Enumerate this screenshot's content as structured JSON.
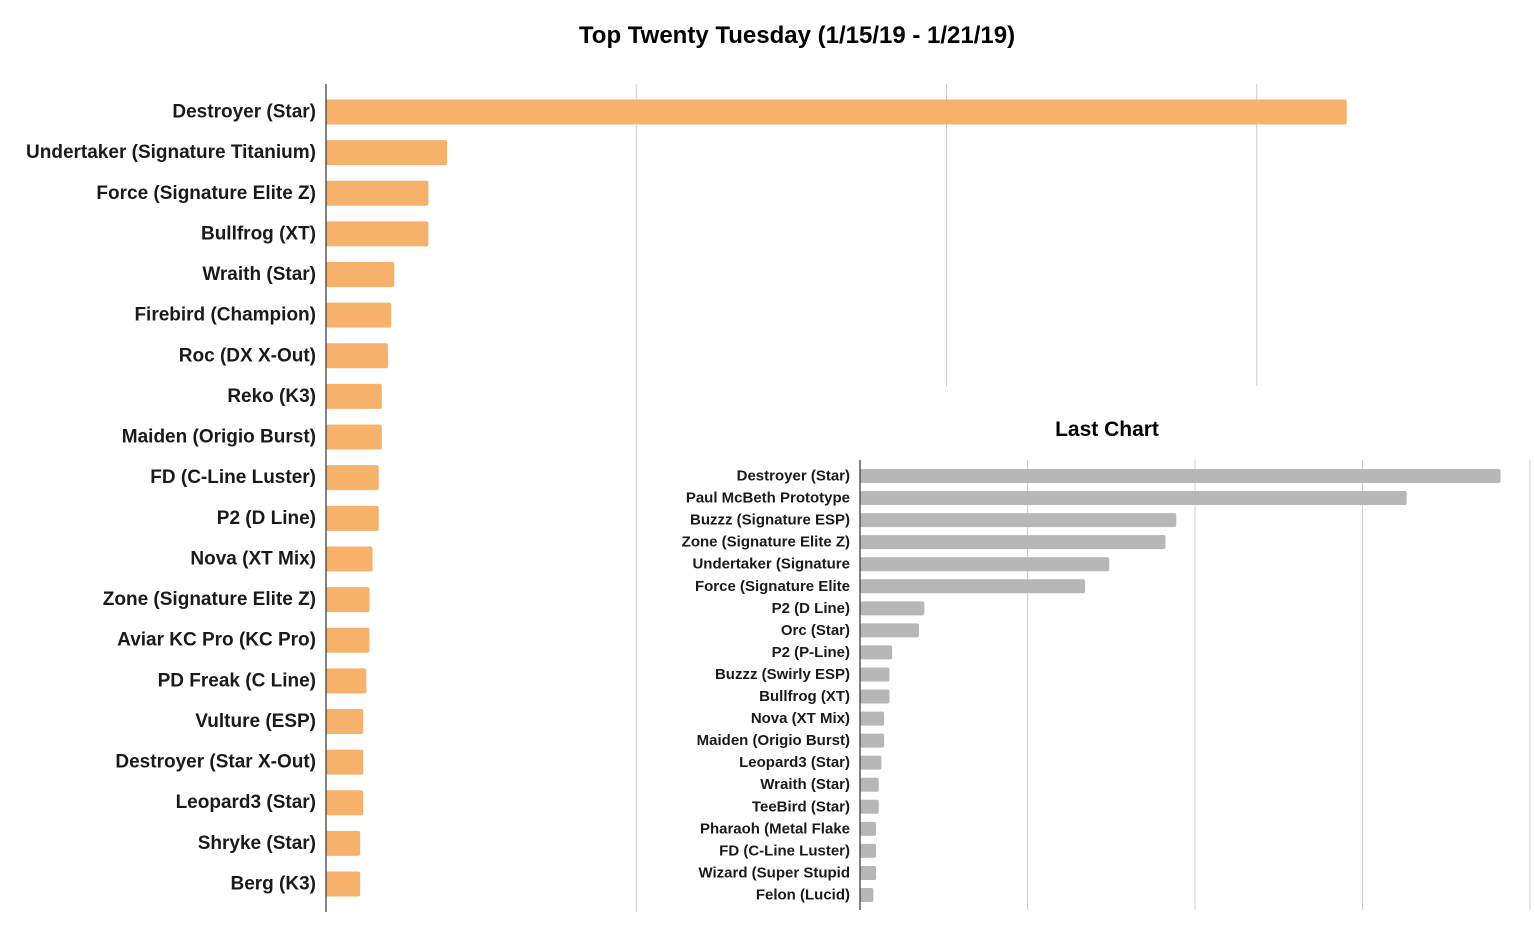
{
  "chart_data": [
    {
      "type": "bar",
      "orientation": "horizontal",
      "title": "Top Twenty Tuesday (1/15/19 - 1/21/19)",
      "xlabel": "",
      "ylabel": "",
      "grid": true,
      "color": "#f6b26b",
      "categories": [
        "Destroyer (Star)",
        "Undertaker (Signature Titanium)",
        "Force (Signature Elite Z)",
        "Bullfrog (XT)",
        "Wraith (Star)",
        "Firebird (Champion)",
        "Roc (DX X-Out)",
        "Reko (K3)",
        "Maiden (Origio Burst)",
        "FD (C-Line Luster)",
        "P2 (D Line)",
        "Nova (XT Mix)",
        "Zone (Signature Elite Z)",
        "Aviar KC Pro (KC Pro)",
        "PD Freak (C Line)",
        "Vulture (ESP)",
        "Destroyer (Star X-Out)",
        "Leopard3 (Star)",
        "Shryke (Star)",
        "Berg (K3)"
      ],
      "values": [
        329,
        39,
        33,
        33,
        22,
        21,
        20,
        18,
        18,
        17,
        17,
        15,
        14,
        14,
        13,
        12,
        12,
        12,
        11,
        11
      ],
      "xlim": [
        0,
        400
      ]
    },
    {
      "type": "bar",
      "orientation": "horizontal",
      "title": "Last Chart",
      "xlabel": "",
      "ylabel": "",
      "grid": true,
      "color": "#b7b7b7",
      "categories": [
        "Destroyer (Star)",
        "Paul McBeth Prototype",
        "Buzzz (Signature ESP)",
        "Zone (Signature Elite Z)",
        "Undertaker (Signature",
        "Force (Signature Elite",
        "P2 (D Line)",
        "Orc (Star)",
        "P2 (P-Line)",
        "Buzzz (Swirly ESP)",
        "Bullfrog (XT)",
        "Nova (XT Mix)",
        "Maiden (Origio Burst)",
        "Leopard3 (Star)",
        "Wraith (Star)",
        "TeeBird (Star)",
        "Pharaoh (Metal Flake",
        "FD (C-Line Luster)",
        "Wizard (Super Stupid",
        "Felon (Lucid)"
      ],
      "values": [
        239,
        204,
        118,
        114,
        93,
        84,
        24,
        22,
        12,
        11,
        11,
        9,
        9,
        8,
        7,
        7,
        6,
        6,
        6,
        5
      ],
      "xlim": [
        0,
        250
      ]
    }
  ]
}
